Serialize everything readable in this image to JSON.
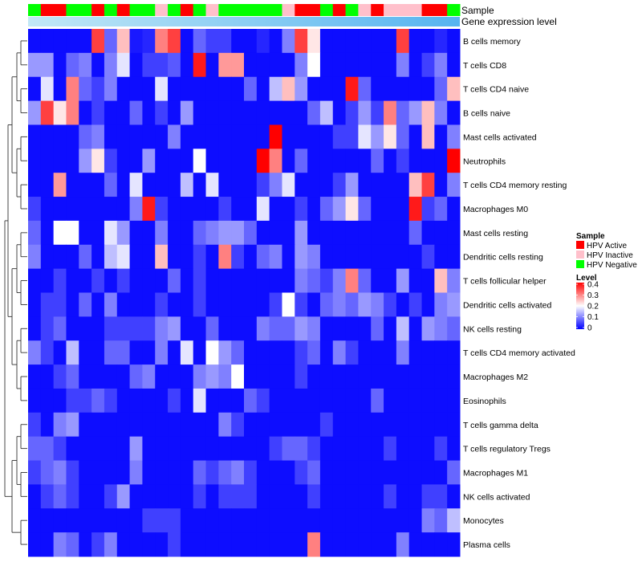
{
  "chart_data": {
    "type": "heatmap",
    "annotation_labels": [
      "Sample",
      "Gene expression level"
    ],
    "sample_legend": {
      "title": "Sample",
      "items": [
        {
          "label": "HPV Active",
          "color": "#ff0000"
        },
        {
          "label": "HPV Inactive",
          "color": "#ffc0cb"
        },
        {
          "label": "HPV Negative",
          "color": "#00ff00"
        }
      ]
    },
    "level_legend": {
      "title": "Level",
      "ticks": [
        "0.4",
        "0.3",
        "0.2",
        "0.1",
        "0"
      ],
      "range": [
        0,
        0.4
      ],
      "colors": [
        "#0000ff",
        "#ffffff",
        "#ff0000"
      ]
    },
    "samples": [
      "N",
      "A",
      "A",
      "N",
      "N",
      "A",
      "N",
      "A",
      "N",
      "N",
      "I",
      "N",
      "A",
      "N",
      "I",
      "N",
      "N",
      "N",
      "N",
      "N",
      "I",
      "A",
      "A",
      "N",
      "A",
      "N",
      "I",
      "A",
      "I",
      "I",
      "I",
      "A",
      "A",
      "N"
    ],
    "rows": [
      {
        "name": "B cells memory",
        "values": [
          0.01,
          0.01,
          0.01,
          0.01,
          0.01,
          0.35,
          0.08,
          0.25,
          0.02,
          0.03,
          0.3,
          0.35,
          0.01,
          0.08,
          0.05,
          0.05,
          0.01,
          0.01,
          0.03,
          0.01,
          0.1,
          0.35,
          0.22,
          0.01,
          0.01,
          0.01,
          0.01,
          0.01,
          0.01,
          0.35,
          0.01,
          0.01,
          0.03,
          0.01
        ]
      },
      {
        "name": "T cells CD8",
        "values": [
          0.12,
          0.12,
          0.01,
          0.08,
          0.1,
          0.01,
          0.1,
          0.18,
          0.01,
          0.05,
          0.05,
          0.07,
          0.01,
          0.38,
          0.01,
          0.28,
          0.28,
          0.01,
          0.01,
          0.01,
          0.01,
          0.1,
          0.2,
          0.01,
          0.01,
          0.01,
          0.01,
          0.01,
          0.01,
          0.1,
          0.01,
          0.05,
          0.1,
          0.01
        ]
      },
      {
        "name": "T cells CD4 naive",
        "values": [
          0.01,
          0.18,
          0.01,
          0.3,
          0.08,
          0.05,
          0.1,
          0.01,
          0.01,
          0.01,
          0.18,
          0.01,
          0.01,
          0.01,
          0.01,
          0.01,
          0.01,
          0.08,
          0.01,
          0.15,
          0.25,
          0.12,
          0.01,
          0.01,
          0.01,
          0.38,
          0.08,
          0.01,
          0.01,
          0.01,
          0.01,
          0.01,
          0.08,
          0.25
        ]
      },
      {
        "name": "B cells naive",
        "values": [
          0.12,
          0.35,
          0.22,
          0.3,
          0.01,
          0.05,
          0.01,
          0.01,
          0.08,
          0.01,
          0.05,
          0.01,
          0.12,
          0.01,
          0.01,
          0.01,
          0.01,
          0.01,
          0.01,
          0.01,
          0.01,
          0.01,
          0.08,
          0.15,
          0.01,
          0.05,
          0.12,
          0.05,
          0.3,
          0.08,
          0.12,
          0.25,
          0.1,
          0.01
        ]
      },
      {
        "name": "Mast cells activated",
        "values": [
          0.01,
          0.01,
          0.01,
          0.01,
          0.08,
          0.1,
          0.01,
          0.01,
          0.01,
          0.01,
          0.01,
          0.1,
          0.01,
          0.01,
          0.01,
          0.01,
          0.01,
          0.01,
          0.01,
          0.42,
          0.01,
          0.01,
          0.01,
          0.01,
          0.05,
          0.05,
          0.18,
          0.12,
          0.22,
          0.08,
          0.01,
          0.25,
          0.01,
          0.1
        ]
      },
      {
        "name": "Neutrophils",
        "values": [
          0.01,
          0.01,
          0.01,
          0.01,
          0.12,
          0.22,
          0.05,
          0.01,
          0.01,
          0.12,
          0.01,
          0.01,
          0.01,
          0.2,
          0.01,
          0.01,
          0.01,
          0.01,
          0.4,
          0.3,
          0.01,
          0.08,
          0.01,
          0.01,
          0.01,
          0.01,
          0.01,
          0.08,
          0.01,
          0.05,
          0.01,
          0.01,
          0.01,
          0.42
        ]
      },
      {
        "name": "T cells CD4 memory resting",
        "values": [
          0.01,
          0.01,
          0.28,
          0.01,
          0.01,
          0.01,
          0.08,
          0.01,
          0.18,
          0.01,
          0.01,
          0.01,
          0.15,
          0.01,
          0.18,
          0.01,
          0.01,
          0.01,
          0.05,
          0.1,
          0.18,
          0.01,
          0.01,
          0.01,
          0.05,
          0.12,
          0.01,
          0.01,
          0.01,
          0.01,
          0.25,
          0.35,
          0.01,
          0.1
        ]
      },
      {
        "name": "Macrophages M0",
        "values": [
          0.05,
          0.01,
          0.01,
          0.01,
          0.01,
          0.01,
          0.01,
          0.01,
          0.1,
          0.38,
          0.05,
          0.01,
          0.01,
          0.01,
          0.01,
          0.05,
          0.01,
          0.01,
          0.18,
          0.01,
          0.01,
          0.05,
          0.01,
          0.08,
          0.12,
          0.22,
          0.08,
          0.01,
          0.01,
          0.01,
          0.38,
          0.05,
          0.08,
          0.01
        ]
      },
      {
        "name": "Mast cells resting",
        "values": [
          0.08,
          0.01,
          0.2,
          0.2,
          0.01,
          0.01,
          0.18,
          0.12,
          0.01,
          0.01,
          0.1,
          0.01,
          0.01,
          0.08,
          0.1,
          0.12,
          0.12,
          0.08,
          0.01,
          0.01,
          0.01,
          0.12,
          0.01,
          0.01,
          0.01,
          0.01,
          0.01,
          0.01,
          0.01,
          0.01,
          0.08,
          0.01,
          0.01,
          0.01
        ]
      },
      {
        "name": "Dendritic cells resting",
        "values": [
          0.1,
          0.01,
          0.01,
          0.01,
          0.08,
          0.01,
          0.15,
          0.18,
          0.01,
          0.01,
          0.25,
          0.01,
          0.01,
          0.05,
          0.01,
          0.3,
          0.05,
          0.01,
          0.08,
          0.1,
          0.01,
          0.12,
          0.1,
          0.01,
          0.01,
          0.01,
          0.01,
          0.01,
          0.01,
          0.01,
          0.01,
          0.05,
          0.01,
          0.01
        ]
      },
      {
        "name": "T cells follicular helper",
        "values": [
          0.01,
          0.01,
          0.05,
          0.01,
          0.01,
          0.05,
          0.01,
          0.05,
          0.01,
          0.01,
          0.01,
          0.08,
          0.01,
          0.05,
          0.01,
          0.01,
          0.01,
          0.01,
          0.01,
          0.01,
          0.01,
          0.1,
          0.08,
          0.05,
          0.1,
          0.3,
          0.08,
          0.01,
          0.01,
          0.12,
          0.01,
          0.01,
          0.25,
          0.1
        ]
      },
      {
        "name": "Dendritic cells activated",
        "values": [
          0.01,
          0.05,
          0.05,
          0.01,
          0.08,
          0.01,
          0.1,
          0.01,
          0.01,
          0.01,
          0.05,
          0.01,
          0.01,
          0.05,
          0.01,
          0.01,
          0.01,
          0.01,
          0.01,
          0.05,
          0.2,
          0.05,
          0.01,
          0.08,
          0.1,
          0.08,
          0.12,
          0.1,
          0.05,
          0.01,
          0.05,
          0.01,
          0.1,
          0.12
        ]
      },
      {
        "name": "NK cells resting",
        "values": [
          0.01,
          0.05,
          0.08,
          0.01,
          0.01,
          0.01,
          0.05,
          0.05,
          0.05,
          0.05,
          0.1,
          0.12,
          0.01,
          0.01,
          0.08,
          0.01,
          0.01,
          0.01,
          0.1,
          0.08,
          0.08,
          0.12,
          0.1,
          0.01,
          0.01,
          0.01,
          0.01,
          0.08,
          0.01,
          0.15,
          0.01,
          0.12,
          0.1,
          0.08
        ]
      },
      {
        "name": "T cells CD4 memory activated",
        "values": [
          0.1,
          0.05,
          0.01,
          0.15,
          0.01,
          0.01,
          0.08,
          0.08,
          0.01,
          0.01,
          0.1,
          0.01,
          0.18,
          0.01,
          0.2,
          0.12,
          0.08,
          0.01,
          0.01,
          0.01,
          0.01,
          0.05,
          0.08,
          0.01,
          0.1,
          0.05,
          0.01,
          0.01,
          0.01,
          0.1,
          0.01,
          0.01,
          0.01,
          0.01
        ]
      },
      {
        "name": "Macrophages M2",
        "values": [
          0.01,
          0.01,
          0.05,
          0.08,
          0.01,
          0.01,
          0.01,
          0.01,
          0.08,
          0.1,
          0.01,
          0.01,
          0.01,
          0.1,
          0.12,
          0.1,
          0.2,
          0.01,
          0.01,
          0.01,
          0.01,
          0.05,
          0.01,
          0.01,
          0.01,
          0.01,
          0.01,
          0.01,
          0.01,
          0.01,
          0.01,
          0.01,
          0.01,
          0.01
        ]
      },
      {
        "name": "Eosinophils",
        "values": [
          0.01,
          0.01,
          0.01,
          0.05,
          0.05,
          0.08,
          0.05,
          0.01,
          0.01,
          0.01,
          0.01,
          0.05,
          0.01,
          0.18,
          0.01,
          0.01,
          0.01,
          0.08,
          0.05,
          0.01,
          0.01,
          0.01,
          0.01,
          0.01,
          0.01,
          0.01,
          0.01,
          0.08,
          0.01,
          0.01,
          0.01,
          0.01,
          0.01,
          0.01
        ]
      },
      {
        "name": "T cells gamma delta",
        "values": [
          0.05,
          0.01,
          0.1,
          0.12,
          0.01,
          0.01,
          0.01,
          0.01,
          0.01,
          0.01,
          0.01,
          0.01,
          0.01,
          0.01,
          0.01,
          0.1,
          0.05,
          0.01,
          0.01,
          0.01,
          0.01,
          0.01,
          0.01,
          0.05,
          0.01,
          0.01,
          0.01,
          0.01,
          0.01,
          0.01,
          0.01,
          0.01,
          0.01,
          0.01
        ]
      },
      {
        "name": "T cells regulatory  Tregs",
        "values": [
          0.08,
          0.08,
          0.05,
          0.01,
          0.01,
          0.01,
          0.01,
          0.01,
          0.12,
          0.01,
          0.01,
          0.01,
          0.01,
          0.01,
          0.01,
          0.01,
          0.01,
          0.01,
          0.01,
          0.05,
          0.08,
          0.08,
          0.05,
          0.01,
          0.01,
          0.01,
          0.01,
          0.01,
          0.05,
          0.01,
          0.01,
          0.01,
          0.05,
          0.01
        ]
      },
      {
        "name": "Macrophages M1",
        "values": [
          0.05,
          0.08,
          0.1,
          0.05,
          0.01,
          0.01,
          0.01,
          0.01,
          0.1,
          0.01,
          0.01,
          0.01,
          0.01,
          0.08,
          0.05,
          0.08,
          0.1,
          0.05,
          0.01,
          0.01,
          0.01,
          0.05,
          0.08,
          0.01,
          0.01,
          0.01,
          0.01,
          0.01,
          0.01,
          0.01,
          0.01,
          0.01,
          0.01,
          0.08
        ]
      },
      {
        "name": "NK cells activated",
        "values": [
          0.01,
          0.05,
          0.08,
          0.05,
          0.01,
          0.01,
          0.05,
          0.12,
          0.01,
          0.01,
          0.01,
          0.01,
          0.01,
          0.05,
          0.01,
          0.05,
          0.05,
          0.05,
          0.01,
          0.01,
          0.01,
          0.01,
          0.05,
          0.01,
          0.01,
          0.01,
          0.01,
          0.01,
          0.05,
          0.01,
          0.01,
          0.05,
          0.05,
          0.01
        ]
      },
      {
        "name": "Monocytes",
        "values": [
          0.01,
          0.01,
          0.01,
          0.01,
          0.01,
          0.01,
          0.01,
          0.01,
          0.01,
          0.05,
          0.05,
          0.05,
          0.01,
          0.01,
          0.01,
          0.01,
          0.01,
          0.01,
          0.01,
          0.01,
          0.01,
          0.01,
          0.01,
          0.01,
          0.01,
          0.01,
          0.01,
          0.01,
          0.01,
          0.01,
          0.01,
          0.1,
          0.08,
          0.15
        ]
      },
      {
        "name": "Plasma cells",
        "values": [
          0.01,
          0.01,
          0.1,
          0.08,
          0.01,
          0.05,
          0.1,
          0.01,
          0.01,
          0.01,
          0.01,
          0.05,
          0.01,
          0.01,
          0.01,
          0.01,
          0.01,
          0.01,
          0.01,
          0.01,
          0.01,
          0.01,
          0.3,
          0.01,
          0.01,
          0.01,
          0.01,
          0.01,
          0.01,
          0.1,
          0.01,
          0.01,
          0.01,
          0.01
        ]
      }
    ]
  }
}
